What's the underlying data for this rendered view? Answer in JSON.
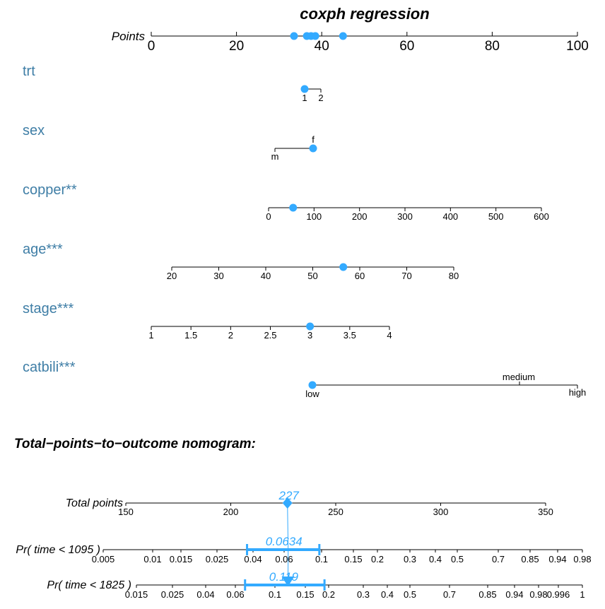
{
  "chart_data": {
    "type": "nomogram",
    "title": "coxph regression",
    "points_axis": {
      "label": "Points",
      "ticks": [
        "0",
        "20",
        "40",
        "60",
        "80",
        "100"
      ],
      "markers": [
        33.5,
        36.5,
        37.5,
        38.5,
        45
      ]
    },
    "variables": [
      {
        "name": "trt",
        "ticks": [
          "1",
          "2"
        ],
        "selected": "1"
      },
      {
        "name": "sex",
        "ticks": [
          "m",
          "f"
        ],
        "selected": "f"
      },
      {
        "name": "copper**",
        "ticks": [
          "0",
          "100",
          "200",
          "300",
          "400",
          "500",
          "600"
        ],
        "selected": 54
      },
      {
        "name": "age***",
        "ticks": [
          "20",
          "30",
          "40",
          "50",
          "60",
          "70",
          "80"
        ],
        "selected": 56.5
      },
      {
        "name": "stage***",
        "ticks": [
          "1",
          "1.5",
          "2",
          "2.5",
          "3",
          "3.5",
          "4"
        ],
        "selected": 3
      },
      {
        "name": "catbili***",
        "ticks": [
          "low",
          "medium",
          "high"
        ],
        "selected": "low"
      }
    ],
    "outcome_title": "Total−points−to−outcome nomogram:",
    "total_points": {
      "label": "Total points",
      "ticks": [
        "150",
        "200",
        "250",
        "300",
        "350"
      ],
      "value": 227,
      "value_label": "227"
    },
    "probability_axes": [
      {
        "label": "Pr( time < 1095 )",
        "ticks": [
          "0.005",
          "0.01",
          "0.015",
          "0.025",
          "0.04",
          "0.06",
          "0.1",
          "0.15",
          "0.2",
          "0.3",
          "0.4",
          "0.5",
          "0.7",
          "0.85",
          "0.94",
          "0.98"
        ],
        "estimate": 0.0634,
        "estimate_label": "0.0634",
        "ci": [
          0.037,
          0.097
        ]
      },
      {
        "label": "Pr( time < 1825 )",
        "ticks": [
          "0.015",
          "0.025",
          "0.04",
          "0.06",
          "0.1",
          "0.15",
          "0.2",
          "0.3",
          "0.4",
          "0.5",
          "0.7",
          "0.85",
          "0.94",
          "0.98",
          "0.996",
          "1"
        ],
        "estimate": 0.119,
        "estimate_label": "0.119",
        "ci": [
          0.068,
          0.19
        ]
      }
    ],
    "colors": {
      "marker": "#33aaff",
      "variable_label": "#3f7ea6",
      "axis": "#000000"
    }
  }
}
